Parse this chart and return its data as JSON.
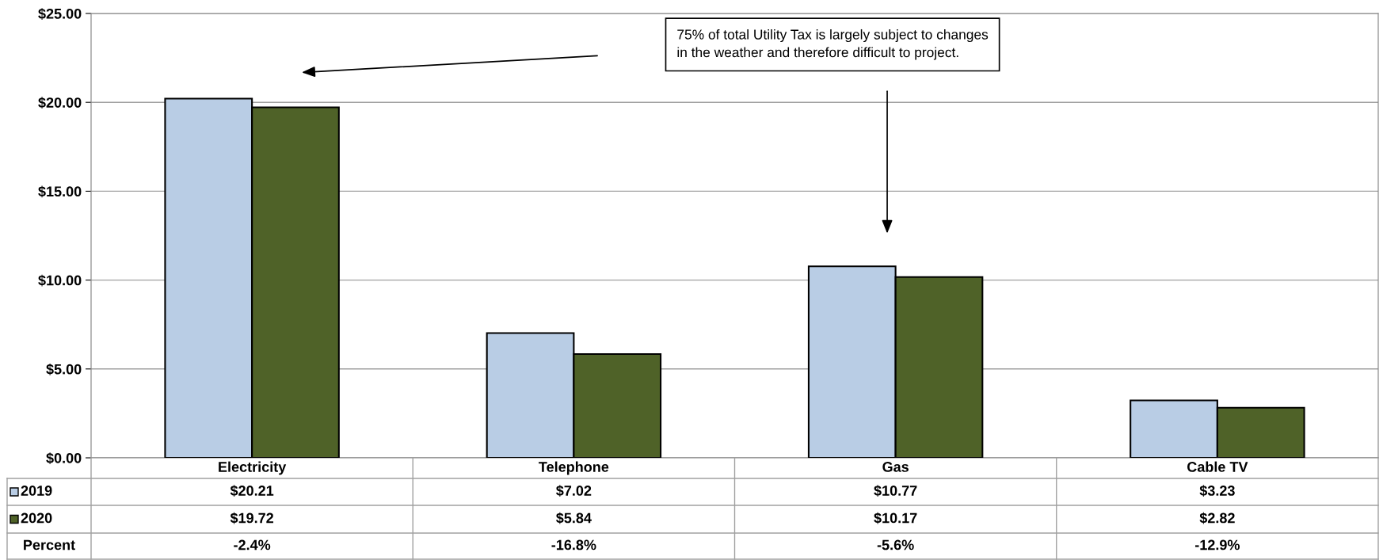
{
  "chart_data": {
    "type": "bar",
    "categories": [
      "Electricity",
      "Telephone",
      "Gas",
      "Cable TV"
    ],
    "series": [
      {
        "name": "2019",
        "color": "#b9cde5",
        "values": [
          20.21,
          7.02,
          10.77,
          3.23
        ],
        "value_labels": [
          "$20.21",
          "$7.02",
          "$10.77",
          "$3.23"
        ]
      },
      {
        "name": "2020",
        "color": "#4f6228",
        "values": [
          19.72,
          5.84,
          10.17,
          2.82
        ],
        "value_labels": [
          "$19.72",
          "$5.84",
          "$10.17",
          "$2.82"
        ]
      }
    ],
    "ylim": [
      0,
      25
    ],
    "yticks": [
      {
        "value": 0,
        "label": "$0.00"
      },
      {
        "value": 5,
        "label": "$5.00"
      },
      {
        "value": 10,
        "label": "$10.00"
      },
      {
        "value": 15,
        "label": "$15.00"
      },
      {
        "value": 20,
        "label": "$20.00"
      },
      {
        "value": 25,
        "label": "$25.00"
      }
    ],
    "grid": "y",
    "legend": "bottom",
    "annotations": [
      "75% of total Utility Tax is largely subject to changes\nin the weather and therefore difficult to project.",
      "Percent",
      "-2.4%",
      "-16.8%",
      "-5.6%",
      "-12.9%"
    ]
  }
}
